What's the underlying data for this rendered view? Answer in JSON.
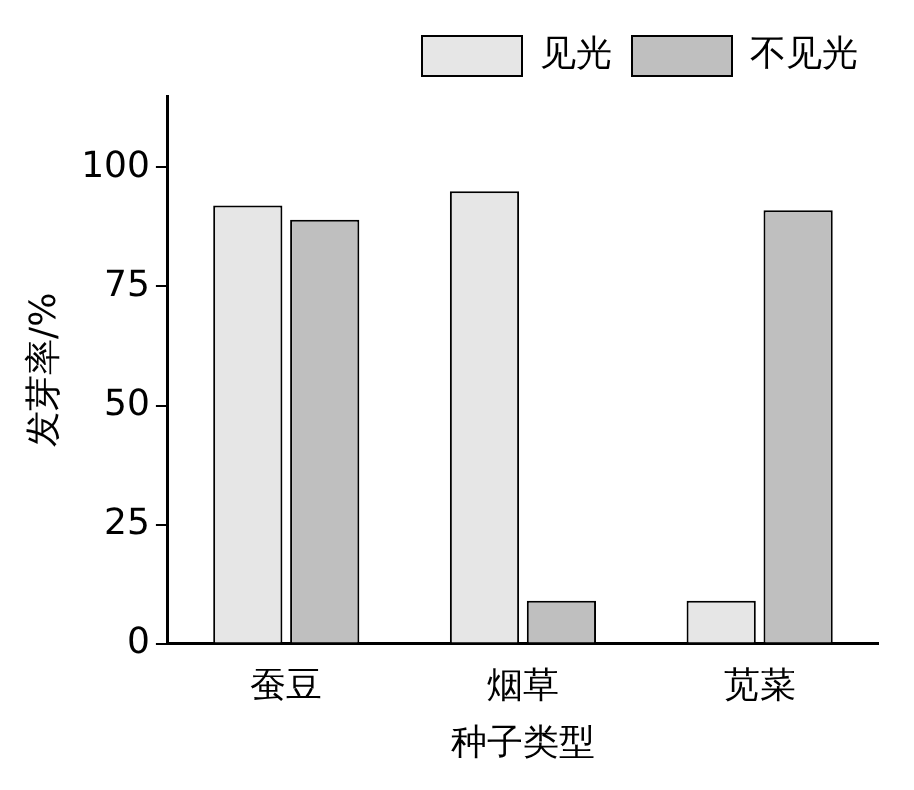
{
  "chart_data": {
    "type": "bar",
    "xlabel": "种子类型",
    "ylabel": "发芽率/%",
    "categories": [
      "蚕豆",
      "烟草",
      "苋菜"
    ],
    "series": [
      {
        "name": "见光",
        "color": "#e6e6e6",
        "values": [
          92,
          95,
          9
        ]
      },
      {
        "name": "不见光",
        "color": "#bfbfbf",
        "values": [
          89,
          9,
          91
        ]
      }
    ],
    "ylim": [
      0,
      115
    ],
    "yticks": [
      0,
      25,
      50,
      75,
      100
    ],
    "grid": false,
    "legend": "top right"
  }
}
